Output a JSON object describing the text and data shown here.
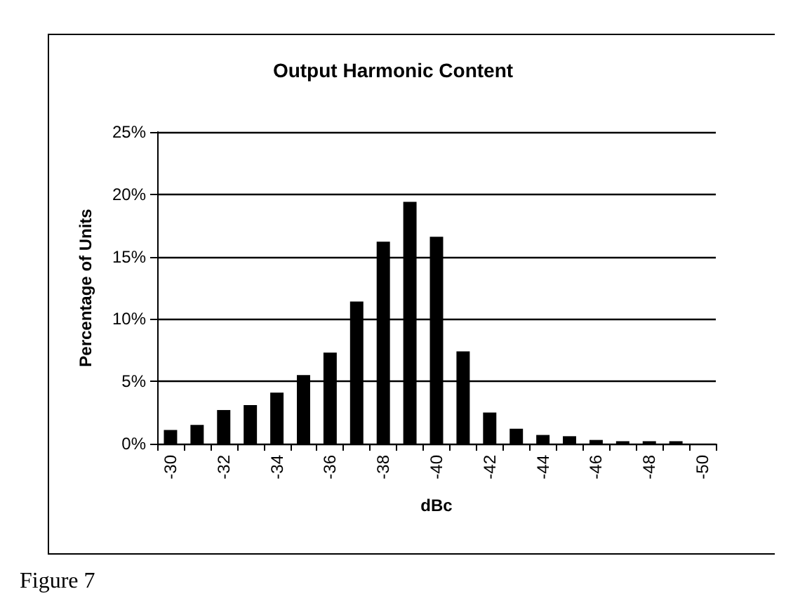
{
  "chart_data": {
    "type": "bar",
    "title": "Output Harmonic Content",
    "xlabel": "dBc",
    "ylabel": "Percentage of Units",
    "annotations": [
      "Figure 7"
    ],
    "categories": [
      "-30",
      null,
      "-32",
      null,
      "-34",
      null,
      "-36",
      null,
      "-38",
      null,
      "-40",
      null,
      "-42",
      null,
      "-44",
      null,
      "-46",
      null,
      "-48",
      null,
      "-50"
    ],
    "values": [
      1.1,
      1.5,
      2.7,
      3.1,
      4.1,
      5.5,
      7.3,
      11.4,
      16.2,
      19.4,
      16.6,
      7.4,
      2.5,
      1.2,
      0.7,
      0.6,
      0.3,
      0.2,
      0.2,
      0.2,
      0
    ],
    "color": "#000000",
    "ylim": [
      0,
      25
    ],
    "yticks": [
      {
        "value": 0,
        "label": "0%"
      },
      {
        "value": 5,
        "label": "5%"
      },
      {
        "value": 10,
        "label": "10%"
      },
      {
        "value": 15,
        "label": "15%"
      },
      {
        "value": 20,
        "label": "20%"
      },
      {
        "value": 25,
        "label": "25%"
      }
    ],
    "grid": "y"
  }
}
